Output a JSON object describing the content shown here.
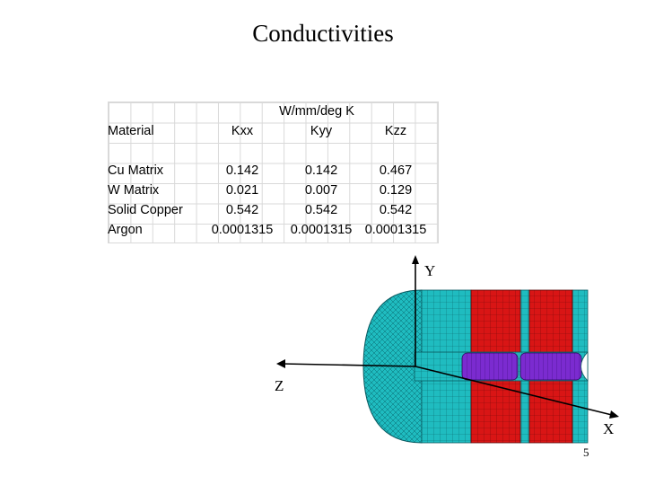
{
  "slide": {
    "title": "Conductivities",
    "page_number": "5"
  },
  "table": {
    "unit_header": "W/mm/deg K",
    "columns": [
      "Material",
      "Kxx",
      "Kyy",
      "Kzz"
    ],
    "rows": [
      {
        "material": "Cu Matrix",
        "kxx": "0.142",
        "kyy": "0.142",
        "kzz": "0.467"
      },
      {
        "material": "W Matrix",
        "kxx": "0.021",
        "kyy": "0.007",
        "kzz": "0.129"
      },
      {
        "material": "Solid Copper",
        "kxx": "0.542",
        "kyy": "0.542",
        "kzz": "0.542"
      },
      {
        "material": "Argon",
        "kxx": "0.0001315",
        "kyy": "0.0001315",
        "kzz": "0.0001315"
      }
    ]
  },
  "figure": {
    "axis_labels": {
      "y": "Y",
      "z": "Z",
      "x": "X"
    },
    "colors": {
      "cyan_mesh": "#1fbcc0",
      "red_mesh": "#d91515",
      "purple_mesh": "#7b2bd0",
      "mesh_line": "#0a5a60"
    }
  }
}
